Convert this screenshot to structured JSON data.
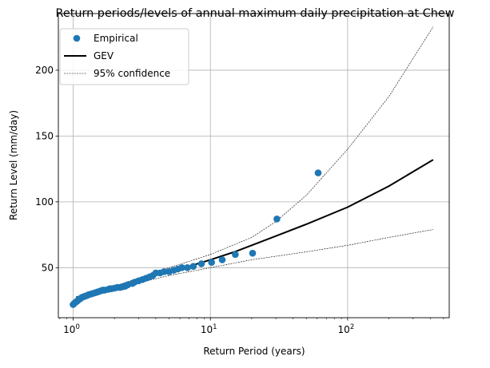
{
  "chart_data": {
    "type": "scatter",
    "title": "Return periods/levels of annual maximum daily precipitation at Chew",
    "xlabel": "Return Period (years)",
    "ylabel": "Return Level (mm/day)",
    "xscale": "log",
    "xlim": [
      0.78,
      550
    ],
    "ylim": [
      12,
      243
    ],
    "grid": true,
    "legend_position": "top-left",
    "x_ticks": [
      {
        "value": 1,
        "base": "10",
        "exp": "0"
      },
      {
        "value": 10,
        "base": "10",
        "exp": "1"
      },
      {
        "value": 100,
        "base": "10",
        "exp": "2"
      }
    ],
    "y_ticks": [
      {
        "value": 50,
        "label": "50"
      },
      {
        "value": 100,
        "label": "100"
      },
      {
        "value": 150,
        "label": "150"
      },
      {
        "value": 200,
        "label": "200"
      }
    ],
    "series": [
      {
        "name": "Empirical",
        "kind": "scatter",
        "color": "#1f77b4",
        "points": [
          [
            1.0,
            22
          ],
          [
            1.02,
            23
          ],
          [
            1.05,
            24
          ],
          [
            1.08,
            25
          ],
          [
            1.1,
            26
          ],
          [
            1.13,
            26.5
          ],
          [
            1.16,
            27.5
          ],
          [
            1.2,
            28
          ],
          [
            1.23,
            28.5
          ],
          [
            1.27,
            29
          ],
          [
            1.3,
            29.5
          ],
          [
            1.35,
            30
          ],
          [
            1.4,
            30.5
          ],
          [
            1.45,
            31
          ],
          [
            1.5,
            31.5
          ],
          [
            1.55,
            32
          ],
          [
            1.6,
            32.5
          ],
          [
            1.65,
            33
          ],
          [
            1.7,
            33
          ],
          [
            1.8,
            33.5
          ],
          [
            1.85,
            34
          ],
          [
            1.9,
            34
          ],
          [
            2.0,
            34.5
          ],
          [
            2.1,
            35
          ],
          [
            2.2,
            35
          ],
          [
            2.3,
            35.5
          ],
          [
            2.4,
            36
          ],
          [
            2.5,
            37
          ],
          [
            2.7,
            38
          ],
          [
            2.8,
            39
          ],
          [
            3.0,
            40
          ],
          [
            3.2,
            41
          ],
          [
            3.4,
            42
          ],
          [
            3.6,
            43
          ],
          [
            3.8,
            44
          ],
          [
            4.0,
            46
          ],
          [
            4.3,
            46
          ],
          [
            4.6,
            47
          ],
          [
            5.0,
            47
          ],
          [
            5.4,
            48
          ],
          [
            5.8,
            49
          ],
          [
            6.2,
            50
          ],
          [
            6.8,
            50
          ],
          [
            7.5,
            51
          ],
          [
            8.6,
            53
          ],
          [
            10.2,
            54
          ],
          [
            12.2,
            56
          ],
          [
            15.2,
            60
          ],
          [
            20.3,
            61
          ],
          [
            30.5,
            87
          ],
          [
            61,
            122
          ]
        ]
      },
      {
        "name": "GEV",
        "kind": "line",
        "color": "#000000",
        "points": [
          [
            1.05,
            27
          ],
          [
            1.2,
            29
          ],
          [
            1.5,
            32
          ],
          [
            2,
            35
          ],
          [
            3,
            41
          ],
          [
            5,
            47
          ],
          [
            7,
            51
          ],
          [
            10,
            56
          ],
          [
            15,
            62
          ],
          [
            20,
            67
          ],
          [
            30,
            74
          ],
          [
            50,
            83
          ],
          [
            100,
            96
          ],
          [
            200,
            112
          ],
          [
            420,
            132
          ]
        ]
      },
      {
        "name": "95% confidence",
        "kind": "dashed",
        "color": "#000000",
        "bands": [
          [
            [
              1.05,
              28
            ],
            [
              2,
              36
            ],
            [
              5,
              50
            ],
            [
              10,
              60
            ],
            [
              20,
              73
            ],
            [
              30,
              85
            ],
            [
              50,
              105
            ],
            [
              100,
              140
            ],
            [
              200,
              180
            ],
            [
              420,
              233
            ]
          ],
          [
            [
              1.05,
              26
            ],
            [
              2,
              34
            ],
            [
              5,
              44
            ],
            [
              10,
              50
            ],
            [
              20,
              56
            ],
            [
              50,
              62
            ],
            [
              100,
              67
            ],
            [
              200,
              73
            ],
            [
              420,
              79
            ]
          ]
        ]
      }
    ]
  }
}
